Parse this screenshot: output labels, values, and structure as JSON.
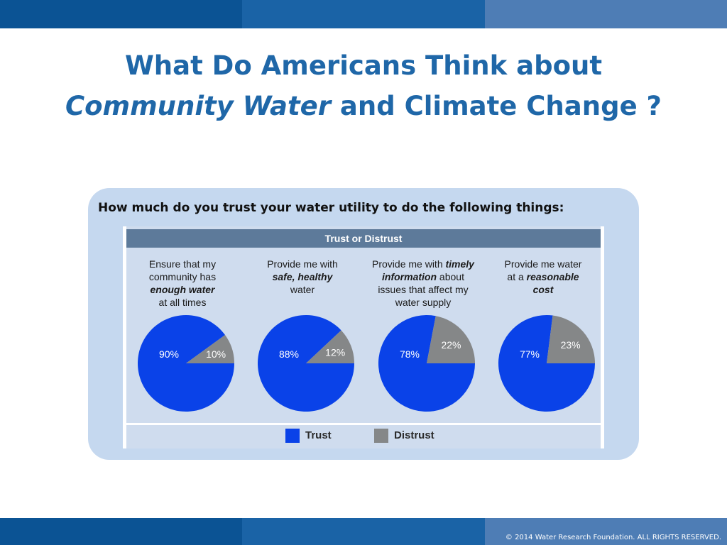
{
  "title": {
    "line1": "What Do Americans Think about",
    "line2_italic": "Community Water",
    "line2_rest": " and Climate Change ?"
  },
  "question": "How much do you trust your water utility to do the following things:",
  "footer": {
    "copyright": "© 2014 Water Research Foundation. ALL RIGHTS RESERVED."
  },
  "colors": {
    "trust": "#0a42e8",
    "distrust": "#858788",
    "accent": "#1f67a8"
  },
  "chart_data": {
    "type": "pie",
    "title": "Trust or Distrust",
    "legend": {
      "position": "bottom",
      "entries": [
        "Trust",
        "Distrust"
      ]
    },
    "charts": [
      {
        "caption": [
          {
            "t": "Ensure that my",
            "b": false
          },
          {
            "t": "community has",
            "b": false
          },
          {
            "t": "enough water",
            "b": true
          },
          {
            "t": "at all times",
            "b": false
          }
        ],
        "slices": [
          {
            "label": "Trust",
            "value": 90,
            "text": "90%"
          },
          {
            "label": "Distrust",
            "value": 10,
            "text": "10%"
          }
        ]
      },
      {
        "caption": [
          {
            "t": "Provide me with",
            "b": false
          },
          {
            "t": "safe, healthy",
            "b": true
          },
          {
            "t": "water",
            "b": false
          }
        ],
        "slices": [
          {
            "label": "Trust",
            "value": 88,
            "text": "88%"
          },
          {
            "label": "Distrust",
            "value": 12,
            "text": "12%"
          }
        ]
      },
      {
        "caption": [
          {
            "parts": [
              {
                "t": "Provide me with ",
                "b": false
              },
              {
                "t": "timely",
                "b": true
              }
            ]
          },
          {
            "parts": [
              {
                "t": "information",
                "b": true
              },
              {
                "t": " about",
                "b": false
              }
            ]
          },
          {
            "t": "issues that affect my",
            "b": false
          },
          {
            "t": "water supply",
            "b": false
          }
        ],
        "slices": [
          {
            "label": "Trust",
            "value": 78,
            "text": "78%"
          },
          {
            "label": "Distrust",
            "value": 22,
            "text": "22%"
          }
        ]
      },
      {
        "caption": [
          {
            "t": "Provide me water",
            "b": false
          },
          {
            "parts": [
              {
                "t": "at a ",
                "b": false
              },
              {
                "t": "reasonable",
                "b": true
              }
            ]
          },
          {
            "t": "cost",
            "b": true
          }
        ],
        "slices": [
          {
            "label": "Trust",
            "value": 77,
            "text": "77%"
          },
          {
            "label": "Distrust",
            "value": 23,
            "text": "23%"
          }
        ]
      }
    ]
  }
}
